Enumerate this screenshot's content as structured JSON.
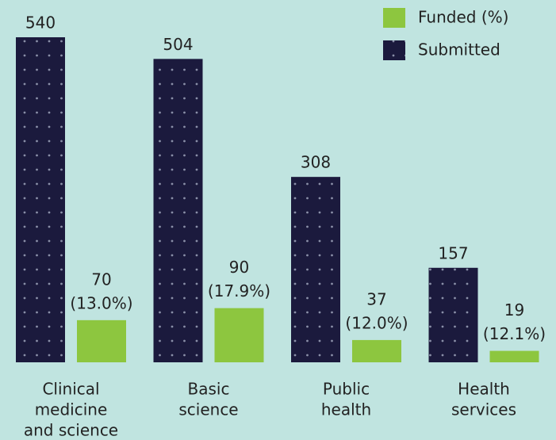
{
  "chart_data": {
    "type": "bar",
    "categories": [
      [
        "Clinical",
        "medicine",
        "and science"
      ],
      [
        "Basic",
        "science"
      ],
      [
        "Public",
        "health"
      ],
      [
        "Health",
        "services"
      ]
    ],
    "series": [
      {
        "name": "Submitted",
        "color": "#1b1a3d",
        "values": [
          540,
          504,
          308,
          157
        ]
      },
      {
        "name": "Funded (%)",
        "color": "#8dc63f",
        "values": [
          70,
          90,
          37,
          19
        ],
        "value_labels": [
          [
            "70",
            "(13.0%)"
          ],
          [
            "90",
            "(17.9%)"
          ],
          [
            "37",
            "(12.0%)"
          ],
          [
            "19",
            "(12.1%)"
          ]
        ]
      }
    ],
    "legend": "upper right"
  }
}
